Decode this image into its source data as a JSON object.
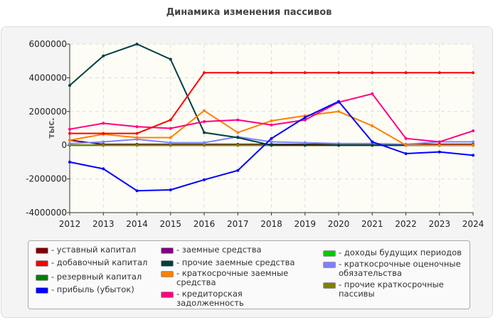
{
  "chart_data": {
    "type": "line",
    "title": "Динамика изменения пассивов",
    "ylabel": "тыс.",
    "xlabel": "",
    "categories": [
      "2012",
      "2013",
      "2014",
      "2015",
      "2016",
      "2017",
      "2018",
      "2019",
      "2020",
      "2021",
      "2022",
      "2023",
      "2024"
    ],
    "ylim": [
      -4000000,
      6000000
    ],
    "yticks": [
      "-4000000",
      "-2000000",
      "0",
      "2000000",
      "4000000",
      "6000000"
    ],
    "grid": true,
    "legend": "bottom",
    "series": [
      {
        "name": "уставный капитал",
        "color": "#800000",
        "values": [
          300000,
          50000,
          50000,
          50000,
          50000,
          50000,
          50000,
          50000,
          50000,
          50000,
          50000,
          50000,
          50000
        ]
      },
      {
        "name": "добавочный капитал",
        "color": "#ff0000",
        "values": [
          700000,
          700000,
          700000,
          1500000,
          4300000,
          4300000,
          4300000,
          4300000,
          4300000,
          4300000,
          4300000,
          4300000,
          4300000
        ]
      },
      {
        "name": "резервный капитал",
        "color": "#008000",
        "values": [
          10000,
          10000,
          10000,
          10000,
          10000,
          10000,
          10000,
          10000,
          10000,
          10000,
          10000,
          10000,
          10000
        ]
      },
      {
        "name": "прибыль (убыток)",
        "color": "#0000ff",
        "values": [
          -1000000,
          -1400000,
          -2700000,
          -2650000,
          -2050000,
          -1500000,
          400000,
          1650000,
          2600000,
          200000,
          -500000,
          -400000,
          -600000
        ]
      },
      {
        "name": "заемные средства",
        "color": "#800080",
        "values": [
          0,
          0,
          0,
          0,
          0,
          0,
          0,
          0,
          0,
          0,
          0,
          0,
          0
        ]
      },
      {
        "name": "прочие заемные средства",
        "color": "#004040",
        "values": [
          3550000,
          5300000,
          6000000,
          5100000,
          750000,
          450000,
          0,
          0,
          0,
          0,
          0,
          0,
          0
        ]
      },
      {
        "name": "краткосрочные заемные средства",
        "color": "#ff8000",
        "values": [
          300000,
          650000,
          450000,
          450000,
          2050000,
          750000,
          1450000,
          1750000,
          2000000,
          1150000,
          0,
          0,
          0
        ]
      },
      {
        "name": "кредиторская задолженность",
        "color": "#ff0080",
        "values": [
          950000,
          1300000,
          1100000,
          1000000,
          1400000,
          1500000,
          1200000,
          1500000,
          2550000,
          3050000,
          400000,
          200000,
          850000
        ]
      },
      {
        "name": "доходы будущих периодов",
        "color": "#00cc00",
        "values": [
          0,
          0,
          0,
          0,
          0,
          0,
          0,
          0,
          0,
          0,
          0,
          0,
          0
        ]
      },
      {
        "name": "краткосрочные оценочные обязательства",
        "color": "#8080ff",
        "values": [
          100000,
          200000,
          350000,
          150000,
          150000,
          500000,
          200000,
          150000,
          100000,
          100000,
          50000,
          200000,
          200000
        ]
      },
      {
        "name": "прочие краткосрочные пассивы",
        "color": "#808000",
        "values": [
          0,
          0,
          0,
          0,
          0,
          0,
          0,
          0,
          0,
          0,
          0,
          0,
          0
        ]
      }
    ]
  }
}
